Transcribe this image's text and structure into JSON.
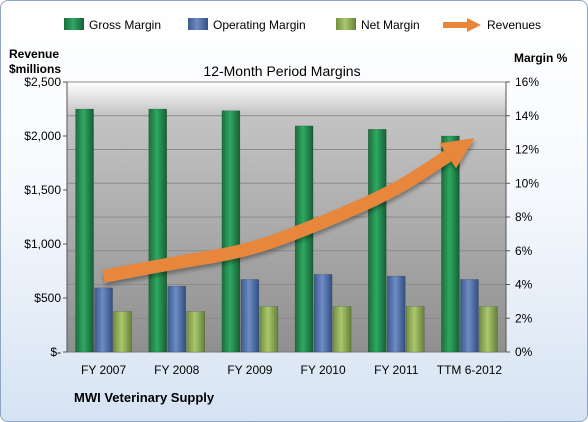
{
  "company": "MWI Veterinary Supply",
  "colors": {
    "gross_margin": "#1f8a4c",
    "operating_margin": "#4f6fa8",
    "net_margin": "#8fac54",
    "revenues": "#e8873a",
    "plot_background": "#aaaaaa"
  },
  "chart_data": {
    "type": "bar",
    "title": "12-Month Period Margins",
    "left_axis_label_line1": "Revenue",
    "left_axis_label_line2": "$millions",
    "right_axis_label": "Margin %",
    "categories": [
      "FY 2007",
      "FY 2008",
      "FY 2009",
      "FY 2010",
      "FY 2011",
      "TTM 6-2012"
    ],
    "left_axis": {
      "ylim": [
        0,
        2500
      ],
      "ticks": [
        0,
        500,
        1000,
        1500,
        2000,
        2500
      ],
      "tick_labels": [
        "$-",
        "$500",
        "$1,000",
        "$1,500",
        "$2,000",
        "$2,500"
      ]
    },
    "right_axis": {
      "ylim": [
        0,
        16
      ],
      "ticks": [
        0,
        2,
        4,
        6,
        8,
        10,
        12,
        14,
        16
      ],
      "tick_labels": [
        "0%",
        "2%",
        "4%",
        "6%",
        "8%",
        "10%",
        "12%",
        "14%",
        "16%"
      ]
    },
    "series": [
      {
        "name": "Gross Margin",
        "axis": "right",
        "kind": "bar",
        "values": [
          14.4,
          14.4,
          14.3,
          13.4,
          13.2,
          12.8
        ]
      },
      {
        "name": "Operating Margin",
        "axis": "right",
        "kind": "bar",
        "values": [
          3.8,
          3.9,
          4.3,
          4.6,
          4.5,
          4.3
        ]
      },
      {
        "name": "Net Margin",
        "axis": "right",
        "kind": "bar",
        "values": [
          2.4,
          2.4,
          2.7,
          2.7,
          2.7,
          2.7
        ]
      },
      {
        "name": "Revenues",
        "axis": "left",
        "kind": "line",
        "values": [
          700,
          830,
          940,
          1200,
          1500,
          1950
        ]
      }
    ],
    "legend_position": "top",
    "grid": true
  }
}
